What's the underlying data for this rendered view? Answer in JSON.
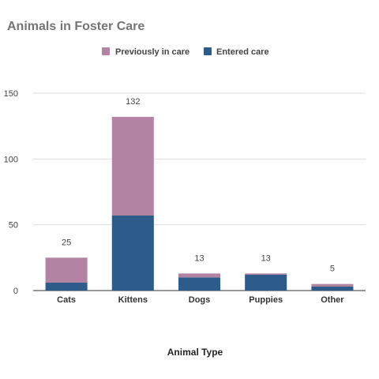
{
  "chart_data": {
    "type": "bar",
    "stacked": true,
    "title": "Animals in Foster Care",
    "xlabel": "Animal Type",
    "ylabel": "",
    "ylim": [
      0,
      150
    ],
    "yticks": [
      0,
      50,
      100,
      150
    ],
    "grid": true,
    "legend_position": "top",
    "categories": [
      "Cats",
      "Kittens",
      "Dogs",
      "Puppies",
      "Other"
    ],
    "series": [
      {
        "name": "Entered care",
        "color": "#2e5c8a",
        "values": [
          6,
          57,
          10,
          12,
          3
        ]
      },
      {
        "name": "Previously in care",
        "color": "#b283a3",
        "values": [
          19,
          75,
          3,
          1,
          2
        ]
      }
    ],
    "totals": [
      25,
      132,
      13,
      13,
      5
    ],
    "legend_order": [
      "Previously in care",
      "Entered care"
    ]
  }
}
